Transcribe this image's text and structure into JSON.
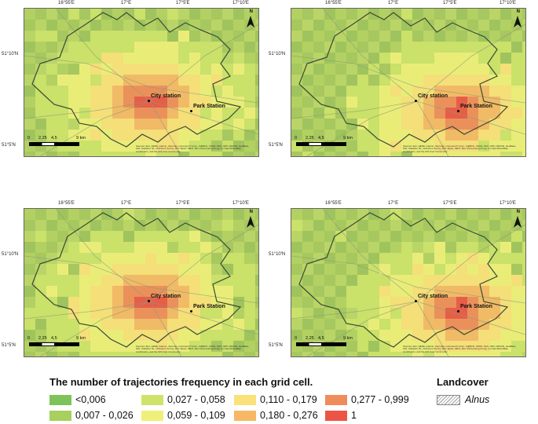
{
  "coords": {
    "top_ticks": [
      "16°55'E",
      "17°E",
      "17°5'E",
      "17°10'E"
    ],
    "left_ticks": [
      "51°10'N",
      "51°5'N"
    ]
  },
  "north_label": "N",
  "scale": {
    "ticks": [
      "0",
      "2,25",
      "4,5",
      "9 km"
    ]
  },
  "stations": {
    "city": "City station",
    "park": "Park Station"
  },
  "credit_text": "Sources: Esri, HERE, Garmin, Intermap, increment P Corp., GEBCO, USGS, FAO, NPS, NRCAN, GeoBase, IGN, Kadaster NL, Ordnance Survey, Esri Japan, METI, Esri China (Hong Kong), (c) OpenStreetMap contributors, and the GIS User Community",
  "legend": {
    "title": "The number of trajectories frequency in each grid cell.",
    "items": [
      {
        "label": "<0,006",
        "color": "#7cc35a"
      },
      {
        "label": "0,007 - 0,026",
        "color": "#a7d05e"
      },
      {
        "label": "0,027 - 0,058",
        "color": "#cde36a"
      },
      {
        "label": "0,059 - 0,109",
        "color": "#eff07a"
      },
      {
        "label": "0,110 - 0,179",
        "color": "#fbe179"
      },
      {
        "label": "0,180 - 0,276",
        "color": "#f7b866"
      },
      {
        "label": "0,277 - 0,999",
        "color": "#f08c5a"
      },
      {
        "label": "1",
        "color": "#ec5545"
      }
    ]
  },
  "landcover": {
    "title": "Landcover",
    "label": "Alnus"
  },
  "panels": [
    {
      "id": "top-left",
      "hotspot": "city"
    },
    {
      "id": "top-right",
      "hotspot": "park"
    },
    {
      "id": "bottom-left",
      "hotspot": "city"
    },
    {
      "id": "bottom-right",
      "hotspot": "park"
    }
  ]
}
